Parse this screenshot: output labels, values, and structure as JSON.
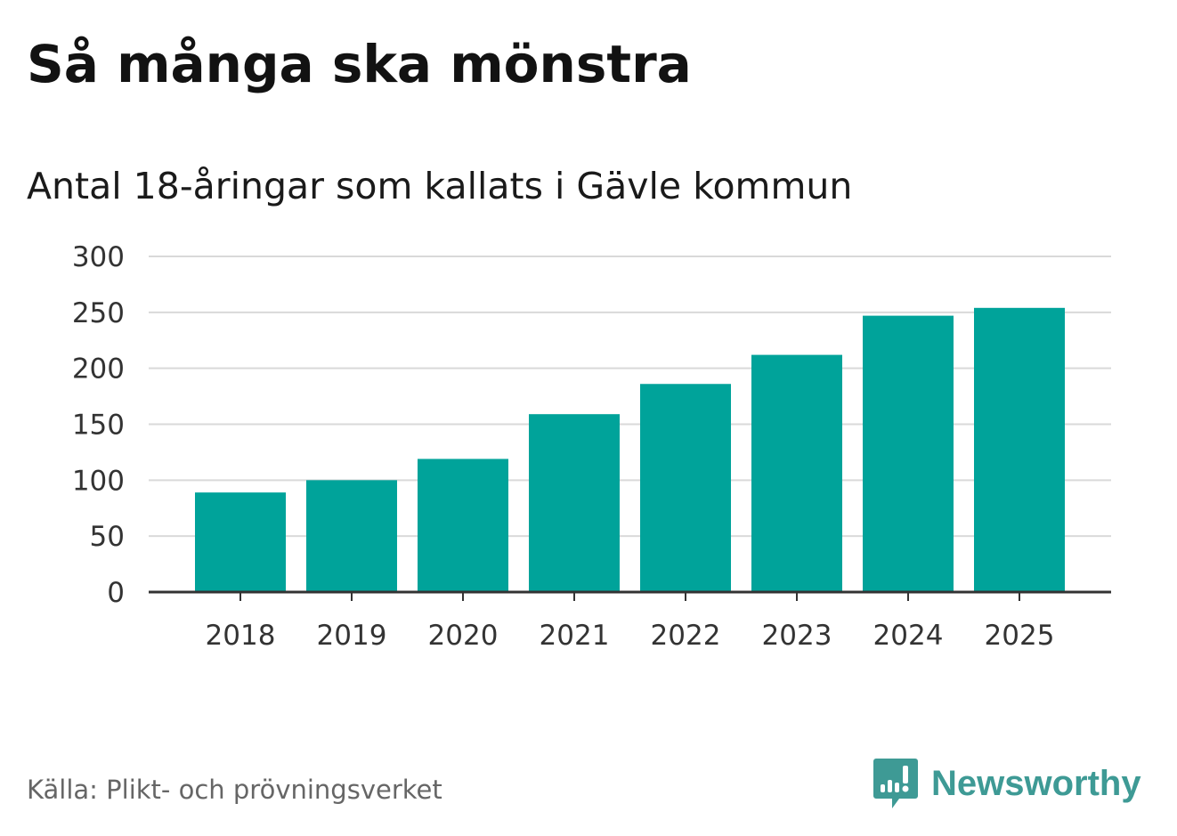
{
  "title": "Så många ska mönstra",
  "subtitle": "Antal 18-åringar som kallats i Gävle kommun",
  "source": "Källa: Plikt- och prövningsverket",
  "brand": {
    "name": "Newsworthy",
    "icon": "newsworthy-logo-icon"
  },
  "colors": {
    "bar": "#00a39a",
    "grid": "#d9d9d9",
    "axis": "#333333",
    "brand": "#3e9a95"
  },
  "chart_data": {
    "type": "bar",
    "title": "Så många ska mönstra",
    "subtitle": "Antal 18-åringar som kallats i Gävle kommun",
    "categories": [
      "2018",
      "2019",
      "2020",
      "2021",
      "2022",
      "2023",
      "2024",
      "2025"
    ],
    "values": [
      89,
      100,
      119,
      159,
      186,
      212,
      247,
      254
    ],
    "xlabel": "",
    "ylabel": "",
    "ylim": [
      0,
      300
    ],
    "yticks": [
      0,
      50,
      100,
      150,
      200,
      250,
      300
    ],
    "grid": true,
    "legend": "none"
  }
}
